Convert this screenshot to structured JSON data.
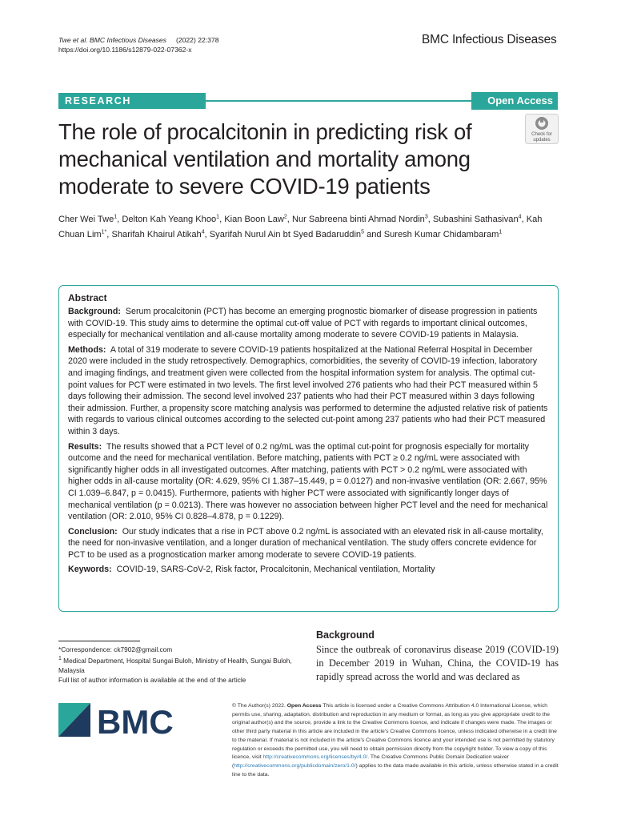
{
  "header": {
    "journal_citation": "Twe et al. BMC Infectious Diseases",
    "year_vol": "(2022) 22:378",
    "doi": "https://doi.org/10.1186/s12879-022-07362-x",
    "journal_name": "BMC Infectious Diseases"
  },
  "banner": {
    "research": "RESEARCH",
    "open_access": "Open Access"
  },
  "check_updates": {
    "line1": "Check for",
    "line2": "updates"
  },
  "title": "The role of procalcitonin in predicting risk of mechanical ventilation and mortality among moderate to severe COVID-19 patients",
  "authors": [
    {
      "name": "Cher Wei Twe",
      "sup": "1",
      "sep": ", "
    },
    {
      "name": "Delton Kah Yeang Khoo",
      "sup": "1",
      "sep": ", "
    },
    {
      "name": "Kian Boon Law",
      "sup": "2",
      "sep": ", "
    },
    {
      "name": "Nur Sabreena binti Ahmad Nordin",
      "sup": "3",
      "sep": ", "
    },
    {
      "name": "Subashini Sathasivan",
      "sup": "4",
      "sep": ", "
    },
    {
      "name": "Kah Chuan Lim",
      "sup": "1*",
      "sep": ", "
    },
    {
      "name": "Sharifah Khairul Atikah",
      "sup": "4",
      "sep": ", "
    },
    {
      "name": "Syarifah Nurul Ain bt Syed Badaruddin",
      "sup": "5",
      "sep": " and "
    },
    {
      "name": "Suresh Kumar Chidambaram",
      "sup": "1",
      "sep": ""
    }
  ],
  "abstract": {
    "heading": "Abstract",
    "background_label": "Background:",
    "background_text": "Serum procalcitonin (PCT) has become an emerging prognostic biomarker of disease progression in patients with COVID-19. This study aims to determine the optimal cut-off value of PCT with regards to important clinical outcomes, especially for mechanical ventilation and all-cause mortality among moderate to severe COVID-19 patients in Malaysia.",
    "methods_label": "Methods:",
    "methods_text": "A total of 319 moderate to severe COVID-19 patients hospitalized at the National Referral Hospital in December 2020 were included in the study retrospectively. Demographics, comorbidities, the severity of COVID-19 infection, laboratory and imaging findings, and treatment given were collected from the hospital information system for analysis. The optimal cut-point values for PCT were estimated in two levels. The first level involved 276 patients who had their PCT measured within 5 days following their admission. The second level involved 237 patients who had their PCT measured within 3 days following their admission. Further, a propensity score matching analysis was performed to determine the adjusted relative risk of patients with regards to various clinical outcomes according to the selected cut-point among 237 patients who had their PCT measured within 3 days.",
    "results_label": "Results:",
    "results_text": "The results showed that a PCT level of 0.2 ng/mL was the optimal cut-point for prognosis especially for mortality outcome and the need for mechanical ventilation. Before matching, patients with PCT ≥ 0.2 ng/mL were associated with significantly higher odds in all investigated outcomes. After matching, patients with PCT > 0.2 ng/mL were associated with higher odds in all-cause mortality (OR: 4.629, 95% CI 1.387–15.449, p = 0.0127) and non-invasive ventilation (OR: 2.667, 95% CI 1.039–6.847, p = 0.0415). Furthermore, patients with higher PCT were associated with significantly longer days of mechanical ventilation (p = 0.0213). There was however no association between higher PCT level and the need for mechanical ventilation (OR: 2.010, 95% CI 0.828–4.878, p = 0.1229).",
    "conclusion_label": "Conclusion:",
    "conclusion_text": "Our study indicates that a rise in PCT above 0.2 ng/mL is associated with an elevated risk in all-cause mortality, the need for non-invasive ventilation, and a longer duration of mechanical ventilation. The study offers concrete evidence for PCT to be used as a prognostication marker among moderate to severe COVID-19 patients.",
    "keywords_label": "Keywords:",
    "keywords_text": "COVID-19, SARS-CoV-2, Risk factor, Procalcitonin, Mechanical ventilation, Mortality"
  },
  "footnotes": {
    "correspondence": "*Correspondence: ck7902@gmail.com",
    "affil_sup": "1",
    "affiliation": "Medical Department, Hospital Sungai Buloh, Ministry of Health, Sungai Buloh, Malaysia",
    "full_list": "Full list of author information is available at the end of the article"
  },
  "background": {
    "heading": "Background",
    "text": "Since the outbreak of coronavirus disease 2019 (COVID-19) in December 2019 in Wuhan, China, the COVID-19 has rapidly spread across the world and was declared as"
  },
  "logo": {
    "text": "BMC",
    "color": "#1f3a5f",
    "accent": "#2aa69a"
  },
  "license": {
    "copyright": "© The Author(s) 2022.",
    "open_access": "Open Access",
    "text1": "This article is licensed under a Creative Commons Attribution 4.0 International License, which permits use, sharing, adaptation, distribution and reproduction in any medium or format, as long as you give appropriate credit to the original author(s) and the source, provide a link to the Creative Commons licence, and indicate if changes were made. The images or other third party material in this article are included in the article's Creative Commons licence, unless indicated otherwise in a credit line to the material. If material is not included in the article's Creative Commons licence and your intended use is not permitted by statutory regulation or exceeds the permitted use, you will need to obtain permission directly from the copyright holder. To view a copy of this licence, visit",
    "link1": "http://creativecommons.org/licenses/by/4.0/",
    "text2": ". The Creative Commons Public Domain Dedication waiver (",
    "link2": "http://creativecommons.org/publicdomain/zero/1.0/",
    "text3": ") applies to the data made available in this article, unless otherwise stated in a credit line to the data."
  }
}
